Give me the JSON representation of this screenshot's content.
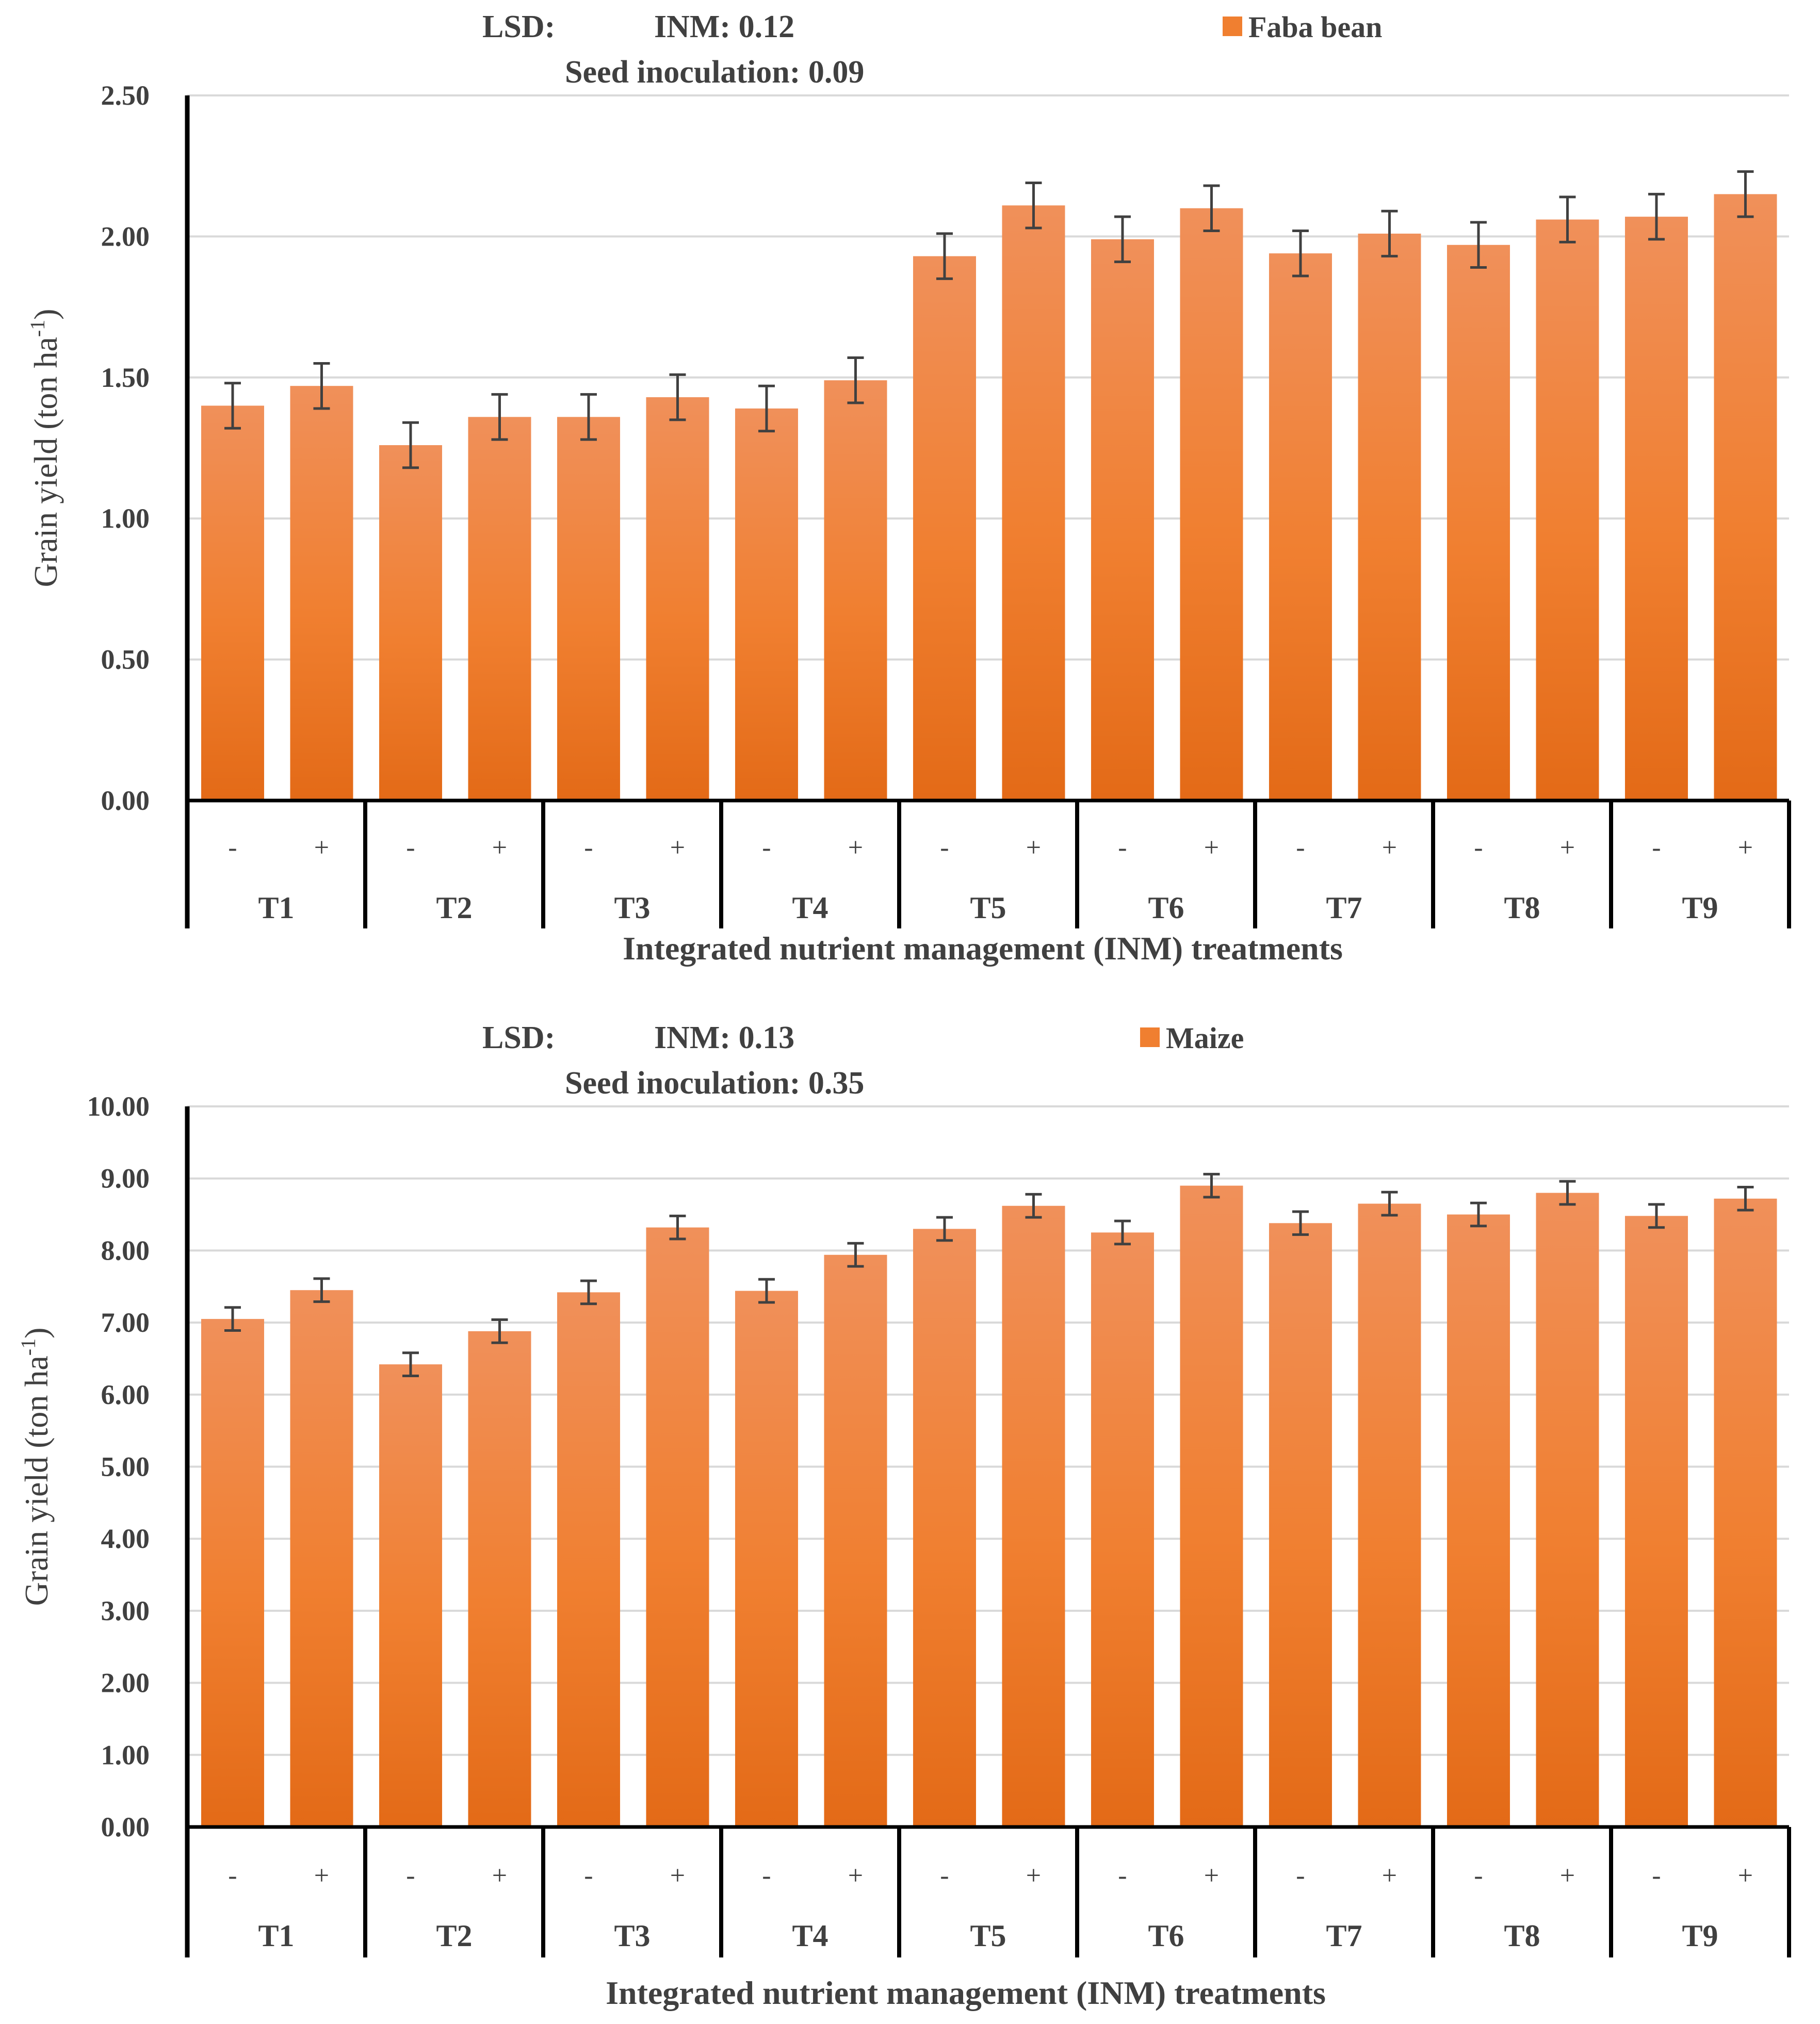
{
  "colors": {
    "bar_top": "#F0905A",
    "bar_mid": "#F07F30",
    "bar_bottom": "#E36A17",
    "grid": "#D9D9D9",
    "axis": "#000000",
    "error": "#404040"
  },
  "chart_data": [
    {
      "type": "bar",
      "series_name": "Faba bean",
      "legend": "Faba bean",
      "annotation": {
        "lsd_label": "LSD:",
        "inm": "INM: 0.12",
        "seed": "Seed inoculation:  0.09"
      },
      "ylabel": "Grain yield (ton ha-1)",
      "ylabel_main": "Grain yield (ton ha",
      "ylabel_sup": "-1",
      "ylabel_end": ")",
      "xlabel": "Integrated nutrient management (INM) treatments",
      "ylim": [
        0,
        2.5
      ],
      "yticks": [
        "0.00",
        "0.50",
        "1.00",
        "1.50",
        "2.00",
        "2.50"
      ],
      "ytick_values": [
        0,
        0.5,
        1.0,
        1.5,
        2.0,
        2.5
      ],
      "groups": [
        "T1",
        "T2",
        "T3",
        "T4",
        "T5",
        "T6",
        "T7",
        "T8",
        "T9"
      ],
      "subcategories": [
        "-",
        "+"
      ],
      "values": [
        1.4,
        1.47,
        1.26,
        1.36,
        1.36,
        1.43,
        1.39,
        1.49,
        1.93,
        2.11,
        1.99,
        2.1,
        1.94,
        2.01,
        1.97,
        2.06,
        2.07,
        2.15
      ],
      "error": [
        0.08,
        0.08,
        0.08,
        0.08,
        0.08,
        0.08,
        0.08,
        0.08,
        0.08,
        0.08,
        0.08,
        0.08,
        0.08,
        0.08,
        0.08,
        0.08,
        0.08,
        0.08
      ]
    },
    {
      "type": "bar",
      "series_name": "Maize",
      "legend": "Maize",
      "annotation": {
        "lsd_label": "LSD:",
        "inm": "INM: 0.13",
        "seed": "Seed inoculation:  0.35"
      },
      "ylabel": "Grain yield (ton ha-1)",
      "ylabel_main": "Grain yield (ton ha",
      "ylabel_sup": "-1",
      "ylabel_end": ")",
      "xlabel": "Integrated nutrient management (INM) treatments",
      "ylim": [
        0,
        10
      ],
      "yticks": [
        "0.00",
        "1.00",
        "2.00",
        "3.00",
        "4.00",
        "5.00",
        "6.00",
        "7.00",
        "8.00",
        "9.00",
        "10.00"
      ],
      "ytick_values": [
        0,
        1,
        2,
        3,
        4,
        5,
        6,
        7,
        8,
        9,
        10
      ],
      "groups": [
        "T1",
        "T2",
        "T3",
        "T4",
        "T5",
        "T6",
        "T7",
        "T8",
        "T9"
      ],
      "subcategories": [
        "-",
        "+"
      ],
      "values": [
        7.05,
        7.45,
        6.42,
        6.88,
        7.42,
        8.32,
        7.44,
        7.94,
        8.3,
        8.62,
        8.25,
        8.9,
        8.38,
        8.65,
        8.5,
        8.8,
        8.48,
        8.72
      ],
      "error": [
        0.16,
        0.16,
        0.16,
        0.16,
        0.16,
        0.16,
        0.16,
        0.16,
        0.16,
        0.16,
        0.16,
        0.16,
        0.16,
        0.16,
        0.16,
        0.16,
        0.16,
        0.16
      ]
    }
  ]
}
